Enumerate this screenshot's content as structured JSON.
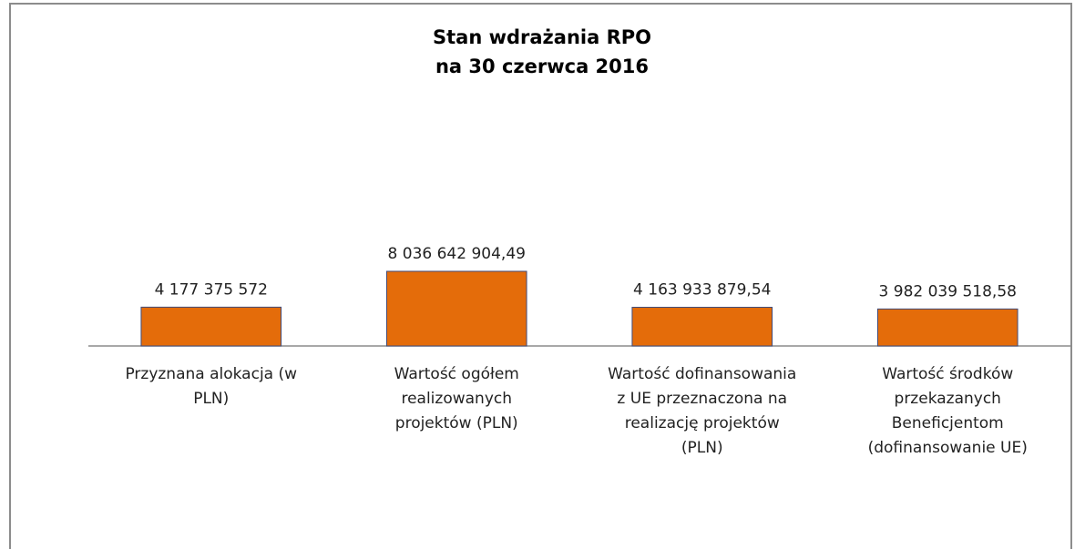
{
  "chart_data": {
    "type": "bar",
    "title": [
      "Stan wdrażania RPO",
      "na 30 czerwca 2016"
    ],
    "categories": [
      "Przyznana alokacja (w PLN)",
      "Wartość ogółem realizowanych projektów (PLN)",
      "Wartość dofinansowania z UE przeznaczona na realizację projektów (PLN)",
      "Wartość środków przekazanych Beneficjentom (dofinansowanie UE)"
    ],
    "values": [
      4177375572,
      8036642904.49,
      4163933879.54,
      3982039518.58
    ],
    "value_labels": [
      "4 177 375 572",
      "8 036 642 904,49",
      "4 163 933 879,54",
      "3 982 039 518,58"
    ],
    "color": "#e46c0a"
  }
}
